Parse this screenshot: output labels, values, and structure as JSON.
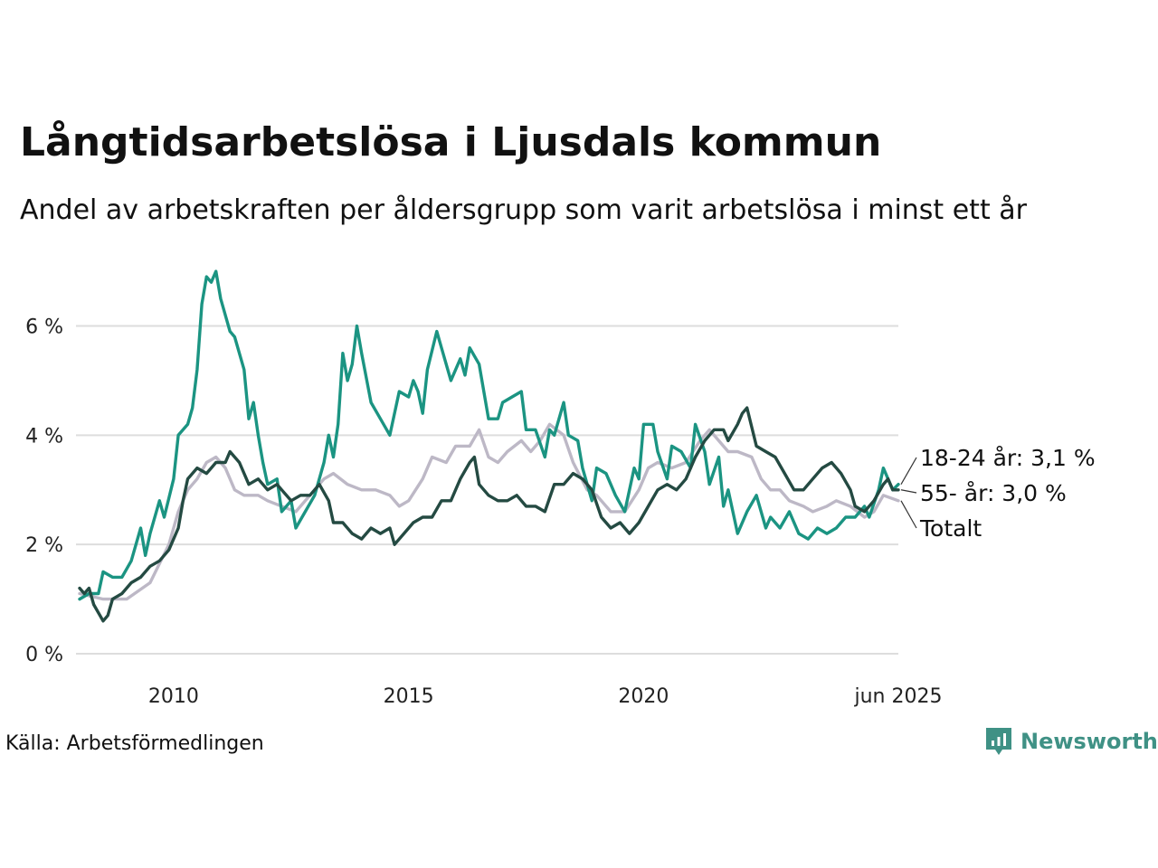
{
  "title": "Långtidsarbetslösa i Ljusdals kommun",
  "subtitle": "Andel av arbetskraften per åldersgrupp som varit arbetslösa i minst ett år",
  "source": "Källa: Arbetsförmedlingen",
  "brand": {
    "name": "Newsworthy",
    "color": "#3f9185",
    "icon": "bar-chart-pin-icon"
  },
  "colors": {
    "youth": "#1b9482",
    "older": "#244a42",
    "total": "#bdb8c6",
    "grid": "#dddddd"
  },
  "chart_data": {
    "type": "line",
    "x_unit": "year",
    "xlim": [
      2008.0,
      2025.42
    ],
    "ylim": [
      0,
      7.2
    ],
    "y_ticks": [
      {
        "value": 0,
        "label": "0 %"
      },
      {
        "value": 2,
        "label": "2 %"
      },
      {
        "value": 4,
        "label": "4 %"
      },
      {
        "value": 6,
        "label": "6 %"
      }
    ],
    "x_ticks": [
      {
        "value": 2010,
        "label": "2010"
      },
      {
        "value": 2015,
        "label": "2015"
      },
      {
        "value": 2020,
        "label": "2020"
      },
      {
        "value": 2025.42,
        "label": "jun 2025"
      }
    ],
    "grid": true,
    "end_labels": [
      {
        "text": "18-24 år: 3,1 %",
        "series": "youth"
      },
      {
        "text": "55- år: 3,0 %",
        "series": "older"
      },
      {
        "text": "Totalt",
        "series": "total"
      }
    ],
    "series": [
      {
        "key": "total",
        "points": [
          [
            2008.0,
            1.1
          ],
          [
            2008.5,
            1.0
          ],
          [
            2009.0,
            1.0
          ],
          [
            2009.5,
            1.3
          ],
          [
            2009.9,
            2.0
          ],
          [
            2010.1,
            2.6
          ],
          [
            2010.3,
            3.0
          ],
          [
            2010.5,
            3.2
          ],
          [
            2010.7,
            3.5
          ],
          [
            2010.9,
            3.6
          ],
          [
            2011.1,
            3.4
          ],
          [
            2011.3,
            3.0
          ],
          [
            2011.5,
            2.9
          ],
          [
            2011.8,
            2.9
          ],
          [
            2012.0,
            2.8
          ],
          [
            2012.3,
            2.7
          ],
          [
            2012.6,
            2.6
          ],
          [
            2012.9,
            2.9
          ],
          [
            2013.2,
            3.2
          ],
          [
            2013.4,
            3.3
          ],
          [
            2013.7,
            3.1
          ],
          [
            2014.0,
            3.0
          ],
          [
            2014.3,
            3.0
          ],
          [
            2014.6,
            2.9
          ],
          [
            2014.8,
            2.7
          ],
          [
            2015.0,
            2.8
          ],
          [
            2015.3,
            3.2
          ],
          [
            2015.5,
            3.6
          ],
          [
            2015.8,
            3.5
          ],
          [
            2016.0,
            3.8
          ],
          [
            2016.3,
            3.8
          ],
          [
            2016.5,
            4.1
          ],
          [
            2016.7,
            3.6
          ],
          [
            2016.9,
            3.5
          ],
          [
            2017.1,
            3.7
          ],
          [
            2017.4,
            3.9
          ],
          [
            2017.6,
            3.7
          ],
          [
            2017.8,
            3.9
          ],
          [
            2018.0,
            4.2
          ],
          [
            2018.3,
            4.0
          ],
          [
            2018.5,
            3.5
          ],
          [
            2018.8,
            3.0
          ],
          [
            2019.0,
            2.9
          ],
          [
            2019.3,
            2.6
          ],
          [
            2019.6,
            2.6
          ],
          [
            2019.9,
            3.0
          ],
          [
            2020.1,
            3.4
          ],
          [
            2020.3,
            3.5
          ],
          [
            2020.6,
            3.4
          ],
          [
            2020.9,
            3.5
          ],
          [
            2021.2,
            3.9
          ],
          [
            2021.4,
            4.1
          ],
          [
            2021.6,
            3.9
          ],
          [
            2021.8,
            3.7
          ],
          [
            2022.0,
            3.7
          ],
          [
            2022.3,
            3.6
          ],
          [
            2022.5,
            3.2
          ],
          [
            2022.7,
            3.0
          ],
          [
            2022.9,
            3.0
          ],
          [
            2023.1,
            2.8
          ],
          [
            2023.4,
            2.7
          ],
          [
            2023.6,
            2.6
          ],
          [
            2023.9,
            2.7
          ],
          [
            2024.1,
            2.8
          ],
          [
            2024.4,
            2.7
          ],
          [
            2024.7,
            2.5
          ],
          [
            2024.9,
            2.6
          ],
          [
            2025.1,
            2.9
          ],
          [
            2025.42,
            2.8
          ]
        ]
      },
      {
        "key": "youth",
        "points": [
          [
            2008.0,
            1.0
          ],
          [
            2008.2,
            1.1
          ],
          [
            2008.4,
            1.1
          ],
          [
            2008.5,
            1.5
          ],
          [
            2008.7,
            1.4
          ],
          [
            2008.9,
            1.4
          ],
          [
            2009.1,
            1.7
          ],
          [
            2009.3,
            2.3
          ],
          [
            2009.4,
            1.8
          ],
          [
            2009.5,
            2.2
          ],
          [
            2009.7,
            2.8
          ],
          [
            2009.8,
            2.5
          ],
          [
            2010.0,
            3.2
          ],
          [
            2010.1,
            4.0
          ],
          [
            2010.3,
            4.2
          ],
          [
            2010.4,
            4.5
          ],
          [
            2010.5,
            5.2
          ],
          [
            2010.6,
            6.4
          ],
          [
            2010.7,
            6.9
          ],
          [
            2010.8,
            6.8
          ],
          [
            2010.9,
            7.0
          ],
          [
            2011.0,
            6.5
          ],
          [
            2011.2,
            5.9
          ],
          [
            2011.3,
            5.8
          ],
          [
            2011.5,
            5.2
          ],
          [
            2011.6,
            4.3
          ],
          [
            2011.7,
            4.6
          ],
          [
            2011.8,
            4.0
          ],
          [
            2011.9,
            3.5
          ],
          [
            2012.0,
            3.1
          ],
          [
            2012.2,
            3.2
          ],
          [
            2012.3,
            2.6
          ],
          [
            2012.5,
            2.8
          ],
          [
            2012.6,
            2.3
          ],
          [
            2012.8,
            2.6
          ],
          [
            2013.0,
            2.9
          ],
          [
            2013.2,
            3.5
          ],
          [
            2013.3,
            4.0
          ],
          [
            2013.4,
            3.6
          ],
          [
            2013.5,
            4.2
          ],
          [
            2013.6,
            5.5
          ],
          [
            2013.7,
            5.0
          ],
          [
            2013.8,
            5.3
          ],
          [
            2013.9,
            6.0
          ],
          [
            2014.0,
            5.5
          ],
          [
            2014.2,
            4.6
          ],
          [
            2014.4,
            4.3
          ],
          [
            2014.6,
            4.0
          ],
          [
            2014.8,
            4.8
          ],
          [
            2015.0,
            4.7
          ],
          [
            2015.1,
            5.0
          ],
          [
            2015.2,
            4.8
          ],
          [
            2015.3,
            4.4
          ],
          [
            2015.4,
            5.2
          ],
          [
            2015.6,
            5.9
          ],
          [
            2015.7,
            5.6
          ],
          [
            2015.9,
            5.0
          ],
          [
            2016.1,
            5.4
          ],
          [
            2016.2,
            5.1
          ],
          [
            2016.3,
            5.6
          ],
          [
            2016.5,
            5.3
          ],
          [
            2016.7,
            4.3
          ],
          [
            2016.9,
            4.3
          ],
          [
            2017.0,
            4.6
          ],
          [
            2017.2,
            4.7
          ],
          [
            2017.4,
            4.8
          ],
          [
            2017.5,
            4.1
          ],
          [
            2017.7,
            4.1
          ],
          [
            2017.9,
            3.6
          ],
          [
            2018.0,
            4.1
          ],
          [
            2018.1,
            4.0
          ],
          [
            2018.3,
            4.6
          ],
          [
            2018.4,
            4.0
          ],
          [
            2018.6,
            3.9
          ],
          [
            2018.7,
            3.4
          ],
          [
            2018.9,
            2.8
          ],
          [
            2019.0,
            3.4
          ],
          [
            2019.2,
            3.3
          ],
          [
            2019.4,
            2.9
          ],
          [
            2019.6,
            2.6
          ],
          [
            2019.8,
            3.4
          ],
          [
            2019.9,
            3.2
          ],
          [
            2020.0,
            4.2
          ],
          [
            2020.2,
            4.2
          ],
          [
            2020.3,
            3.7
          ],
          [
            2020.5,
            3.2
          ],
          [
            2020.6,
            3.8
          ],
          [
            2020.8,
            3.7
          ],
          [
            2021.0,
            3.4
          ],
          [
            2021.1,
            4.2
          ],
          [
            2021.3,
            3.7
          ],
          [
            2021.4,
            3.1
          ],
          [
            2021.6,
            3.6
          ],
          [
            2021.7,
            2.7
          ],
          [
            2021.8,
            3.0
          ],
          [
            2022.0,
            2.2
          ],
          [
            2022.2,
            2.6
          ],
          [
            2022.4,
            2.9
          ],
          [
            2022.6,
            2.3
          ],
          [
            2022.7,
            2.5
          ],
          [
            2022.9,
            2.3
          ],
          [
            2023.1,
            2.6
          ],
          [
            2023.3,
            2.2
          ],
          [
            2023.5,
            2.1
          ],
          [
            2023.7,
            2.3
          ],
          [
            2023.9,
            2.2
          ],
          [
            2024.1,
            2.3
          ],
          [
            2024.3,
            2.5
          ],
          [
            2024.5,
            2.5
          ],
          [
            2024.7,
            2.7
          ],
          [
            2024.8,
            2.5
          ],
          [
            2025.0,
            3.0
          ],
          [
            2025.1,
            3.4
          ],
          [
            2025.3,
            3.0
          ],
          [
            2025.42,
            3.1
          ]
        ]
      },
      {
        "key": "older",
        "points": [
          [
            2008.0,
            1.2
          ],
          [
            2008.1,
            1.1
          ],
          [
            2008.2,
            1.2
          ],
          [
            2008.3,
            0.9
          ],
          [
            2008.5,
            0.6
          ],
          [
            2008.6,
            0.7
          ],
          [
            2008.7,
            1.0
          ],
          [
            2008.9,
            1.1
          ],
          [
            2009.1,
            1.3
          ],
          [
            2009.3,
            1.4
          ],
          [
            2009.5,
            1.6
          ],
          [
            2009.7,
            1.7
          ],
          [
            2009.9,
            1.9
          ],
          [
            2010.1,
            2.3
          ],
          [
            2010.2,
            2.8
          ],
          [
            2010.3,
            3.2
          ],
          [
            2010.5,
            3.4
          ],
          [
            2010.7,
            3.3
          ],
          [
            2010.8,
            3.4
          ],
          [
            2010.9,
            3.5
          ],
          [
            2011.1,
            3.5
          ],
          [
            2011.2,
            3.7
          ],
          [
            2011.4,
            3.5
          ],
          [
            2011.6,
            3.1
          ],
          [
            2011.8,
            3.2
          ],
          [
            2012.0,
            3.0
          ],
          [
            2012.2,
            3.1
          ],
          [
            2012.3,
            3.0
          ],
          [
            2012.5,
            2.8
          ],
          [
            2012.7,
            2.9
          ],
          [
            2012.9,
            2.9
          ],
          [
            2013.1,
            3.1
          ],
          [
            2013.3,
            2.8
          ],
          [
            2013.4,
            2.4
          ],
          [
            2013.6,
            2.4
          ],
          [
            2013.8,
            2.2
          ],
          [
            2014.0,
            2.1
          ],
          [
            2014.2,
            2.3
          ],
          [
            2014.4,
            2.2
          ],
          [
            2014.6,
            2.3
          ],
          [
            2014.7,
            2.0
          ],
          [
            2014.9,
            2.2
          ],
          [
            2015.1,
            2.4
          ],
          [
            2015.3,
            2.5
          ],
          [
            2015.5,
            2.5
          ],
          [
            2015.7,
            2.8
          ],
          [
            2015.9,
            2.8
          ],
          [
            2016.1,
            3.2
          ],
          [
            2016.3,
            3.5
          ],
          [
            2016.4,
            3.6
          ],
          [
            2016.5,
            3.1
          ],
          [
            2016.7,
            2.9
          ],
          [
            2016.9,
            2.8
          ],
          [
            2017.1,
            2.8
          ],
          [
            2017.3,
            2.9
          ],
          [
            2017.5,
            2.7
          ],
          [
            2017.7,
            2.7
          ],
          [
            2017.9,
            2.6
          ],
          [
            2018.1,
            3.1
          ],
          [
            2018.3,
            3.1
          ],
          [
            2018.5,
            3.3
          ],
          [
            2018.7,
            3.2
          ],
          [
            2018.9,
            3.0
          ],
          [
            2019.1,
            2.5
          ],
          [
            2019.3,
            2.3
          ],
          [
            2019.5,
            2.4
          ],
          [
            2019.7,
            2.2
          ],
          [
            2019.9,
            2.4
          ],
          [
            2020.1,
            2.7
          ],
          [
            2020.3,
            3.0
          ],
          [
            2020.5,
            3.1
          ],
          [
            2020.7,
            3.0
          ],
          [
            2020.9,
            3.2
          ],
          [
            2021.1,
            3.6
          ],
          [
            2021.3,
            3.9
          ],
          [
            2021.5,
            4.1
          ],
          [
            2021.7,
            4.1
          ],
          [
            2021.8,
            3.9
          ],
          [
            2022.0,
            4.2
          ],
          [
            2022.1,
            4.4
          ],
          [
            2022.2,
            4.5
          ],
          [
            2022.4,
            3.8
          ],
          [
            2022.6,
            3.7
          ],
          [
            2022.8,
            3.6
          ],
          [
            2023.0,
            3.3
          ],
          [
            2023.2,
            3.0
          ],
          [
            2023.4,
            3.0
          ],
          [
            2023.6,
            3.2
          ],
          [
            2023.8,
            3.4
          ],
          [
            2024.0,
            3.5
          ],
          [
            2024.2,
            3.3
          ],
          [
            2024.4,
            3.0
          ],
          [
            2024.5,
            2.7
          ],
          [
            2024.7,
            2.6
          ],
          [
            2024.9,
            2.8
          ],
          [
            2025.1,
            3.1
          ],
          [
            2025.2,
            3.2
          ],
          [
            2025.3,
            3.0
          ],
          [
            2025.42,
            3.0
          ]
        ]
      }
    ]
  }
}
